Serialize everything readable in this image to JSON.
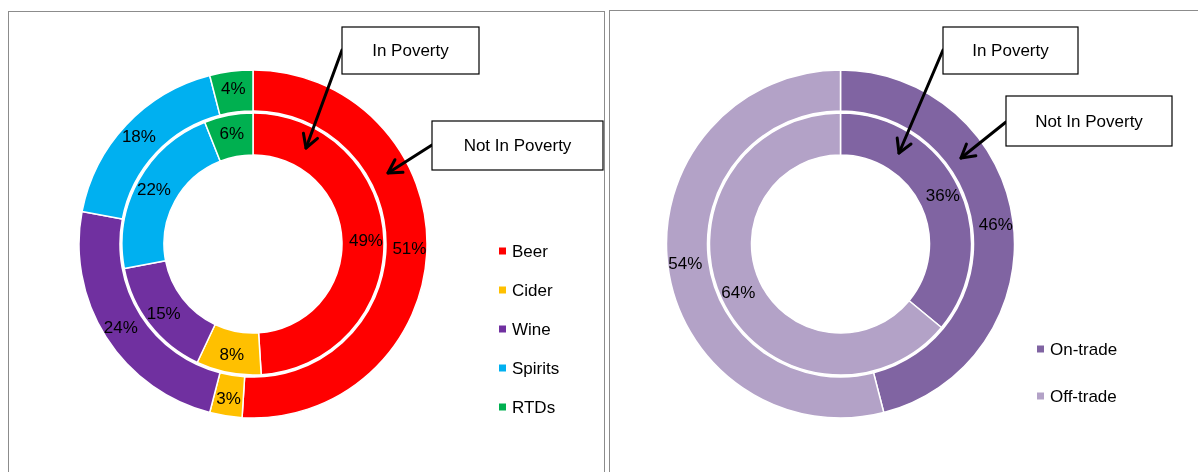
{
  "chart_data": [
    {
      "type": "donut",
      "categories": [
        "Beer",
        "Cider",
        "Wine",
        "Spirits",
        "RTDs"
      ],
      "colors": [
        "#ff0000",
        "#ffc000",
        "#7030a0",
        "#00b0f0",
        "#00b050"
      ],
      "legend": "right",
      "annotations": [
        "In Poverty",
        "Not In Poverty"
      ],
      "series": [
        {
          "values": [
            49,
            8,
            15,
            22,
            6
          ],
          "value_labels": [
            "49%",
            "8%",
            "15%",
            "22%",
            "6%"
          ]
        },
        {
          "values": [
            51,
            3,
            24,
            18,
            4
          ],
          "value_labels": [
            "51%",
            "3%",
            "24%",
            "18%",
            "4%"
          ]
        }
      ]
    },
    {
      "type": "donut",
      "categories": [
        "On-trade",
        "Off-trade"
      ],
      "colors": [
        "#8064a2",
        "#b3a2c7"
      ],
      "legend": "right",
      "annotations": [
        "In Poverty",
        "Not In Poverty"
      ],
      "series": [
        {
          "values": [
            36,
            64
          ],
          "value_labels": [
            "36%",
            "64%"
          ]
        },
        {
          "values": [
            46,
            54
          ],
          "value_labels": [
            "46%",
            "54%"
          ]
        }
      ]
    }
  ]
}
